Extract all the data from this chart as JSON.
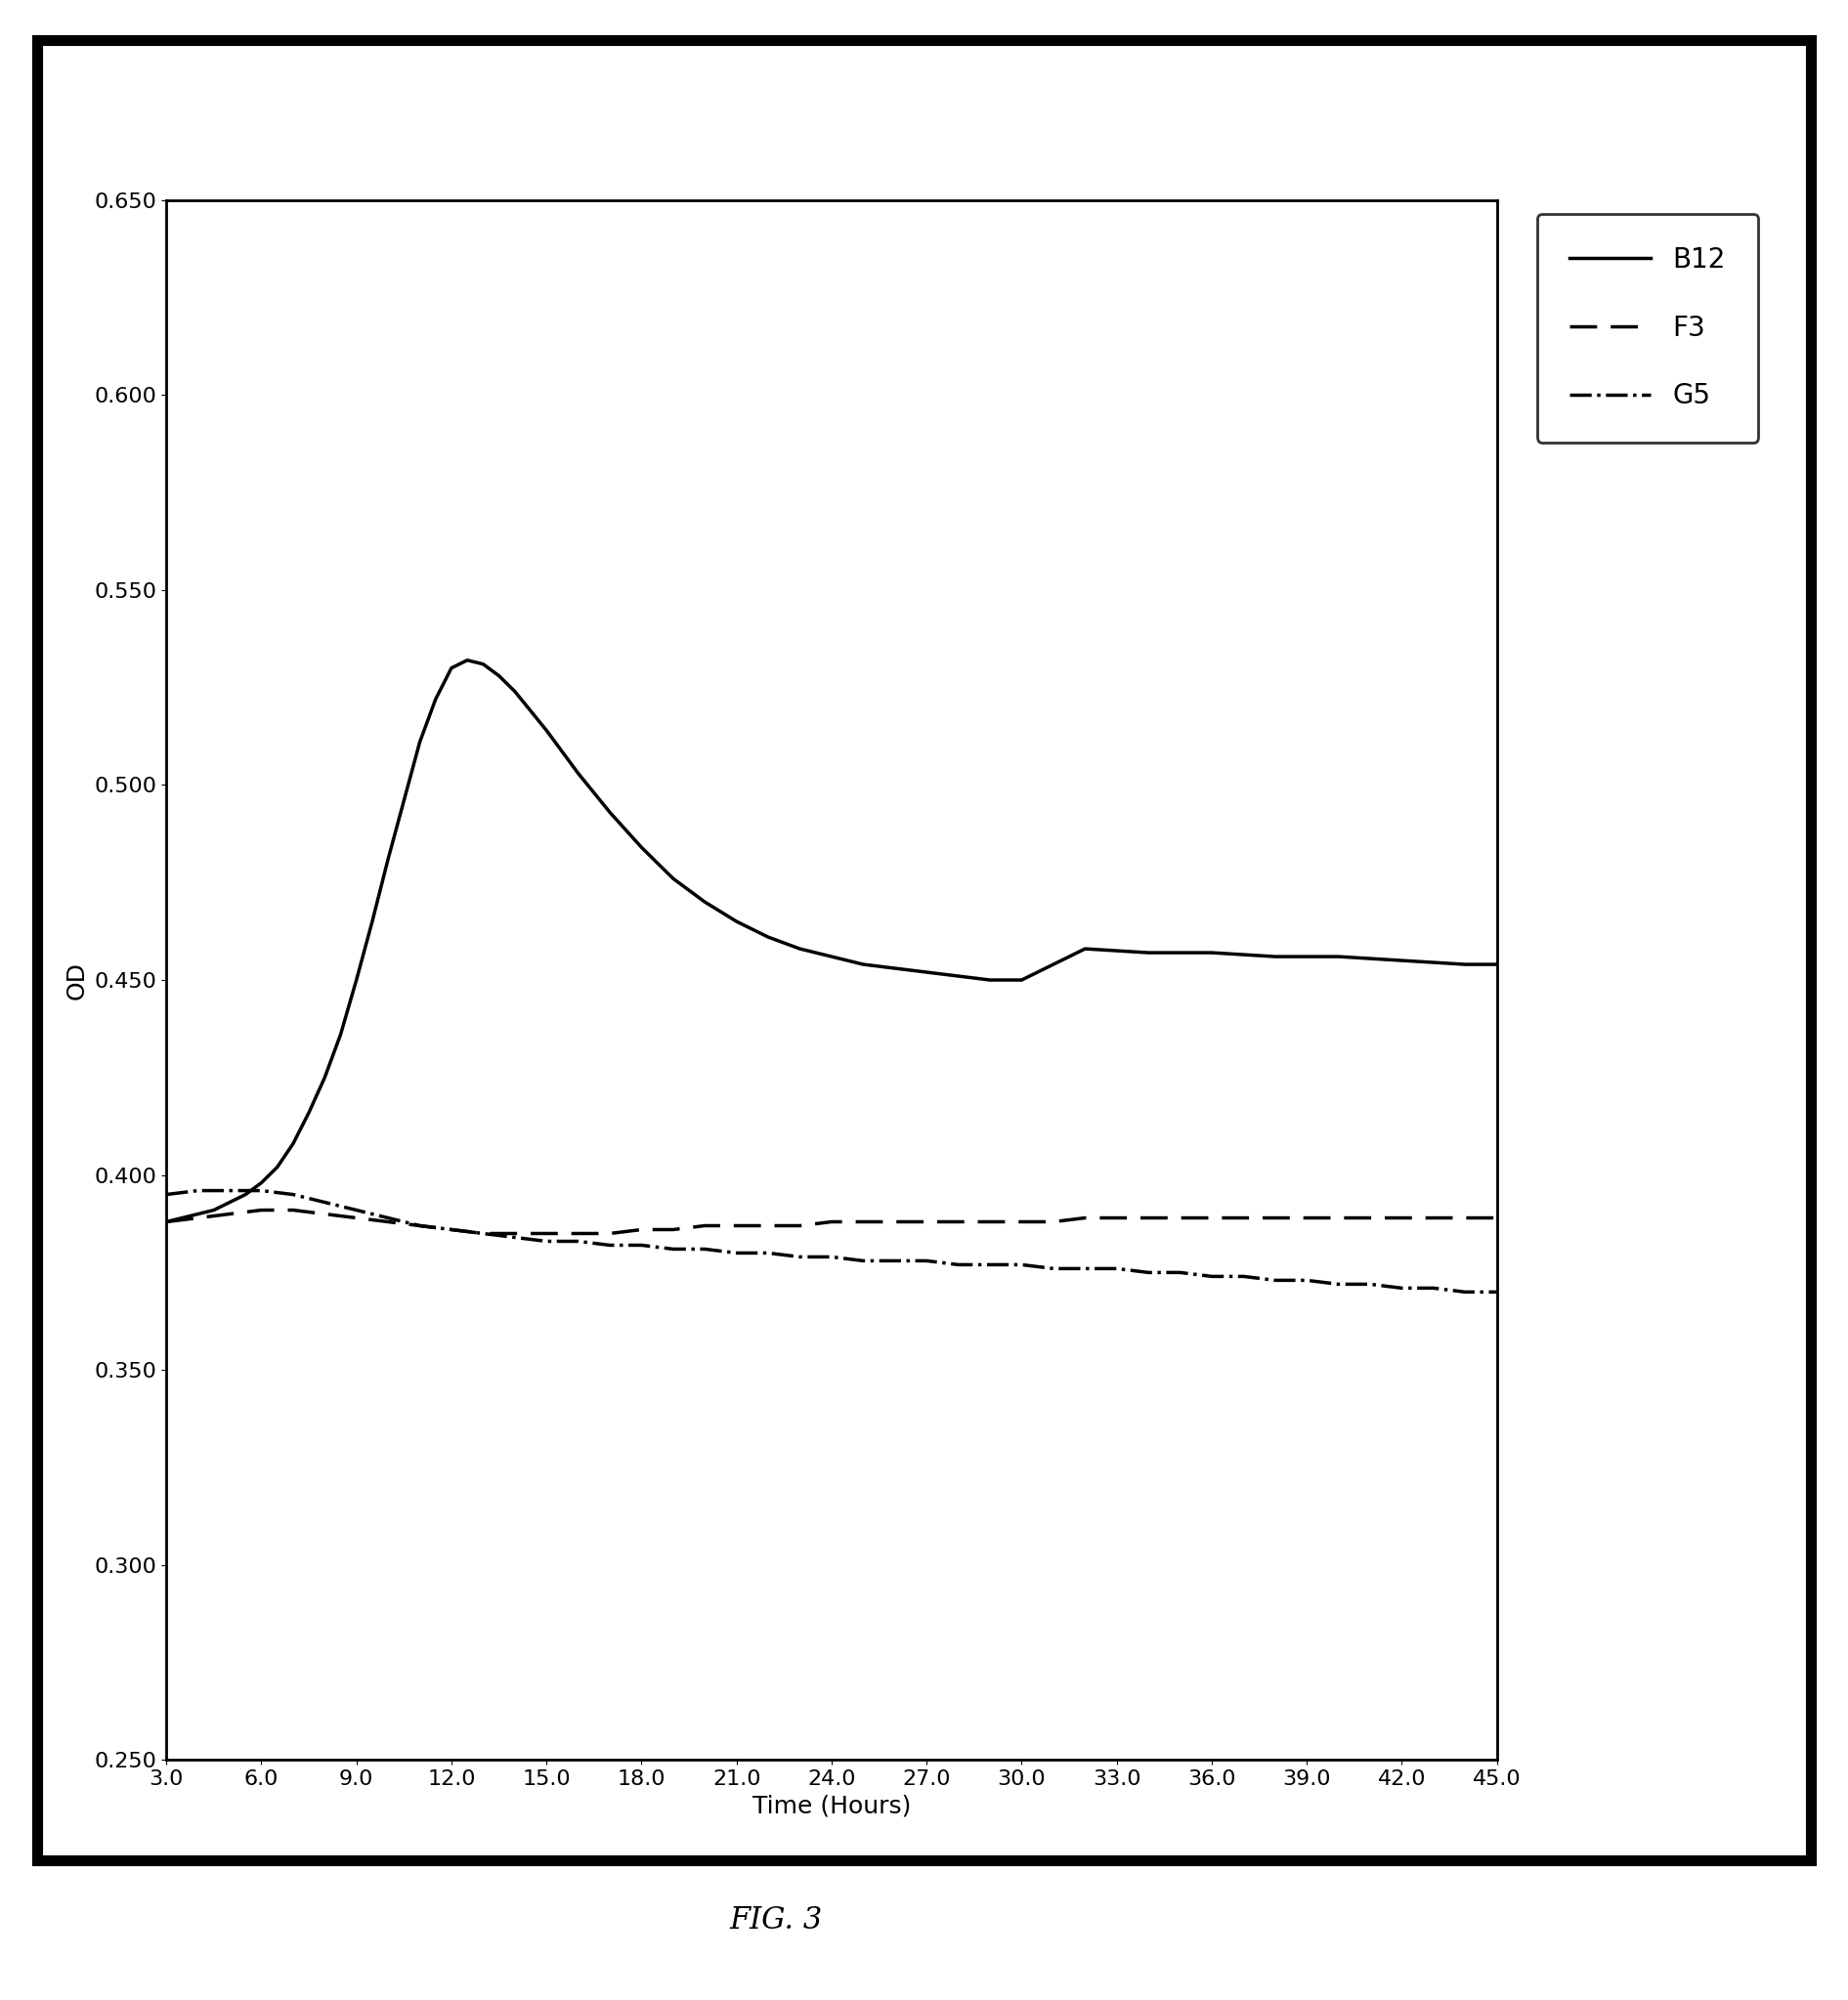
{
  "title": "FIG. 3",
  "xlabel": "Time (Hours)",
  "ylabel": "OD",
  "xlim": [
    3.0,
    45.0
  ],
  "ylim": [
    0.25,
    0.65
  ],
  "xticks": [
    3.0,
    6.0,
    9.0,
    12.0,
    15.0,
    18.0,
    21.0,
    24.0,
    27.0,
    30.0,
    33.0,
    36.0,
    39.0,
    42.0,
    45.0
  ],
  "yticks": [
    0.25,
    0.3,
    0.35,
    0.4,
    0.45,
    0.5,
    0.55,
    0.6,
    0.65
  ],
  "B12_x": [
    3.0,
    3.5,
    4.0,
    4.5,
    5.0,
    5.5,
    6.0,
    6.5,
    7.0,
    7.5,
    8.0,
    8.5,
    9.0,
    9.5,
    10.0,
    10.5,
    11.0,
    11.5,
    12.0,
    12.5,
    13.0,
    13.5,
    14.0,
    14.5,
    15.0,
    16.0,
    17.0,
    18.0,
    19.0,
    20.0,
    21.0,
    22.0,
    23.0,
    24.0,
    25.0,
    26.0,
    27.0,
    28.0,
    29.0,
    30.0,
    32.0,
    34.0,
    36.0,
    38.0,
    40.0,
    42.0,
    44.0,
    45.0
  ],
  "B12_y": [
    0.388,
    0.389,
    0.39,
    0.391,
    0.393,
    0.395,
    0.398,
    0.402,
    0.408,
    0.416,
    0.425,
    0.436,
    0.45,
    0.465,
    0.481,
    0.496,
    0.511,
    0.522,
    0.53,
    0.532,
    0.531,
    0.528,
    0.524,
    0.519,
    0.514,
    0.503,
    0.493,
    0.484,
    0.476,
    0.47,
    0.465,
    0.461,
    0.458,
    0.456,
    0.454,
    0.453,
    0.452,
    0.451,
    0.45,
    0.45,
    0.458,
    0.457,
    0.457,
    0.456,
    0.456,
    0.455,
    0.454,
    0.454
  ],
  "F3_x": [
    3.0,
    4.0,
    5.0,
    6.0,
    7.0,
    8.0,
    9.0,
    10.0,
    11.0,
    12.0,
    13.0,
    14.0,
    15.0,
    16.0,
    17.0,
    18.0,
    19.0,
    20.0,
    21.0,
    22.0,
    23.0,
    24.0,
    25.0,
    26.0,
    27.0,
    28.0,
    29.0,
    30.0,
    31.0,
    32.0,
    33.0,
    34.0,
    35.0,
    36.0,
    37.0,
    38.0,
    39.0,
    40.0,
    41.0,
    42.0,
    43.0,
    44.0,
    45.0
  ],
  "F3_y": [
    0.388,
    0.389,
    0.39,
    0.391,
    0.391,
    0.39,
    0.389,
    0.388,
    0.387,
    0.386,
    0.385,
    0.385,
    0.385,
    0.385,
    0.385,
    0.386,
    0.386,
    0.387,
    0.387,
    0.387,
    0.387,
    0.388,
    0.388,
    0.388,
    0.388,
    0.388,
    0.388,
    0.388,
    0.388,
    0.389,
    0.389,
    0.389,
    0.389,
    0.389,
    0.389,
    0.389,
    0.389,
    0.389,
    0.389,
    0.389,
    0.389,
    0.389,
    0.389
  ],
  "G5_x": [
    3.0,
    4.0,
    5.0,
    6.0,
    7.0,
    8.0,
    9.0,
    10.0,
    11.0,
    12.0,
    13.0,
    14.0,
    15.0,
    16.0,
    17.0,
    18.0,
    19.0,
    20.0,
    21.0,
    22.0,
    23.0,
    24.0,
    25.0,
    26.0,
    27.0,
    28.0,
    29.0,
    30.0,
    31.0,
    32.0,
    33.0,
    34.0,
    35.0,
    36.0,
    37.0,
    38.0,
    39.0,
    40.0,
    41.0,
    42.0,
    43.0,
    44.0,
    45.0
  ],
  "G5_y": [
    0.395,
    0.396,
    0.396,
    0.396,
    0.395,
    0.393,
    0.391,
    0.389,
    0.387,
    0.386,
    0.385,
    0.384,
    0.383,
    0.383,
    0.382,
    0.382,
    0.381,
    0.381,
    0.38,
    0.38,
    0.379,
    0.379,
    0.378,
    0.378,
    0.378,
    0.377,
    0.377,
    0.377,
    0.376,
    0.376,
    0.376,
    0.375,
    0.375,
    0.374,
    0.374,
    0.373,
    0.373,
    0.372,
    0.372,
    0.371,
    0.371,
    0.37,
    0.37
  ],
  "background_color": "#ffffff",
  "line_color": "#000000",
  "linewidth": 2.5,
  "outer_border_linewidth": 8.0,
  "inner_border_linewidth": 2.0,
  "legend_fontsize": 20,
  "tick_fontsize": 16,
  "label_fontsize": 18,
  "title_fontsize": 22
}
